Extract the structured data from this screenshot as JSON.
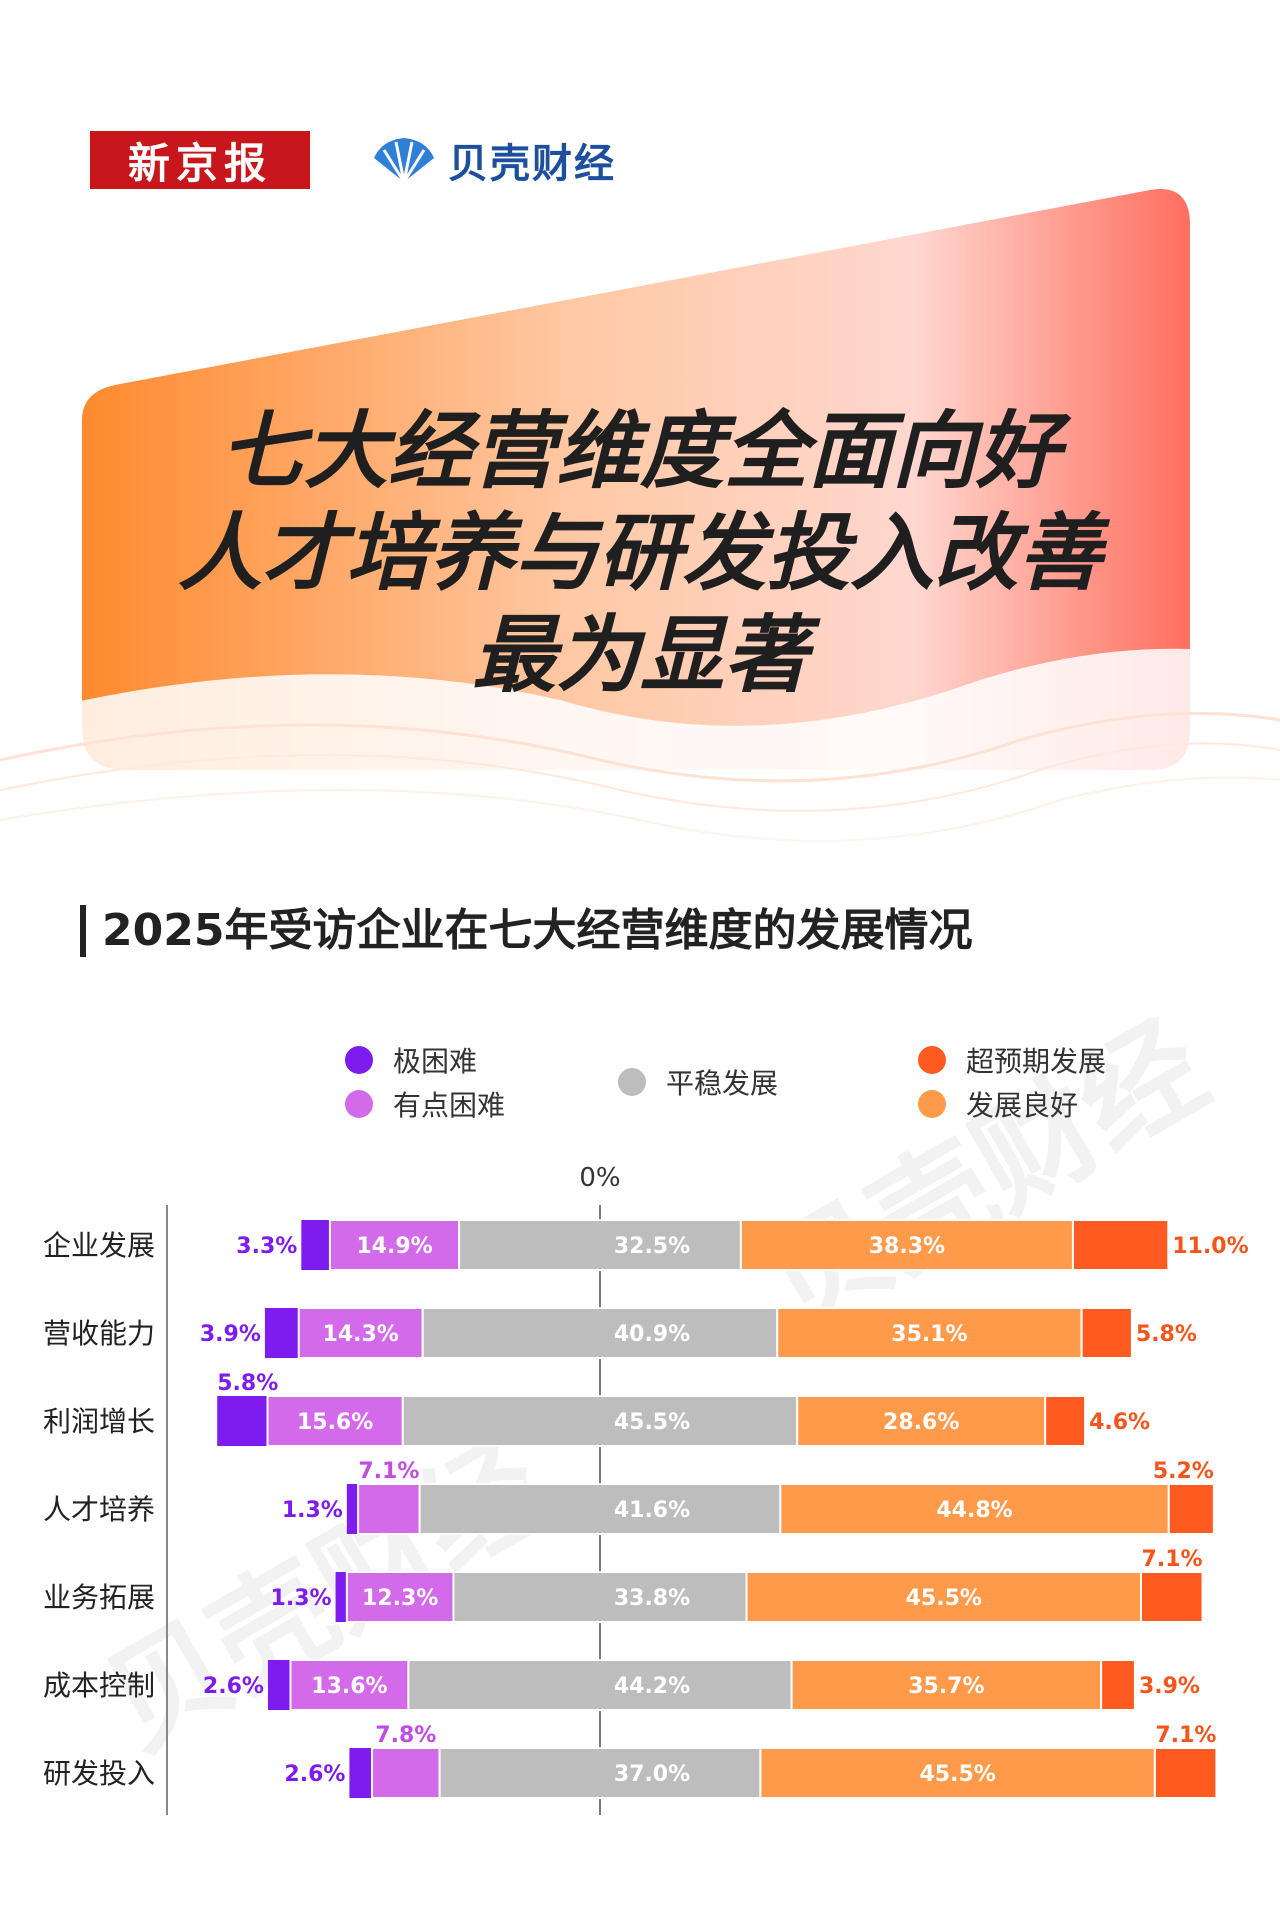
{
  "logos": {
    "xjb": "新京报",
    "bk": "贝壳财经"
  },
  "headline": [
    "七大经营维度全面向好",
    "人才培养与研发投入改善",
    "最为显著"
  ],
  "subtitle": "2025年受访企业在七大经营维度的发展情况",
  "watermark": "贝壳财经",
  "legend": [
    {
      "label": "极困难",
      "color": "#7e1cf0"
    },
    {
      "label": "有点困难",
      "color": "#d36aea"
    },
    {
      "label": "平稳发展",
      "color": "#bdbdbd"
    },
    {
      "label": "超预期发展",
      "color": "#ff5a1f"
    },
    {
      "label": "发展良好",
      "color": "#ff9a4a"
    }
  ],
  "chart_data": {
    "type": "bar",
    "orientation": "horizontal",
    "stacked": "diverging",
    "zero_label": "0%",
    "categories": [
      "企业发展",
      "营收能力",
      "利润增长",
      "人才培养",
      "业务拓展",
      "成本控制",
      "研发投入"
    ],
    "series": [
      {
        "name": "极困难",
        "color": "#7e1cf0",
        "label_color": "#7e1cf0",
        "side": "negative",
        "values": [
          3.3,
          3.9,
          5.8,
          1.3,
          1.3,
          2.6,
          2.6
        ],
        "labels": [
          "3.3%",
          "3.9%",
          "5.8%",
          "1.3%",
          "1.3%",
          "2.6%",
          "2.6%"
        ]
      },
      {
        "name": "有点困难",
        "color": "#d36aea",
        "label_color": "#c24be0",
        "side": "negative",
        "values": [
          14.9,
          14.3,
          15.6,
          7.1,
          12.3,
          13.6,
          7.8
        ],
        "labels": [
          "14.9%",
          "14.3%",
          "15.6%",
          "7.1%",
          "12.3%",
          "13.6%",
          "7.8%"
        ]
      },
      {
        "name": "平稳发展",
        "color": "#bdbdbd",
        "label_color": "#ffffff",
        "side": "center",
        "values": [
          32.5,
          40.9,
          45.5,
          41.6,
          33.8,
          44.2,
          37.0
        ],
        "labels": [
          "32.5%",
          "40.9%",
          "45.5%",
          "41.6%",
          "33.8%",
          "44.2%",
          "37.0%"
        ]
      },
      {
        "name": "发展良好",
        "color": "#ff9a4a",
        "label_color": "#ffffff",
        "side": "positive",
        "values": [
          38.3,
          35.1,
          28.6,
          44.8,
          45.5,
          35.7,
          45.5
        ],
        "labels": [
          "38.3%",
          "35.1%",
          "28.6%",
          "44.8%",
          "45.5%",
          "35.7%",
          "45.5%"
        ]
      },
      {
        "name": "超预期发展",
        "color": "#ff5a1f",
        "label_color": "#f5541a",
        "side": "positive",
        "values": [
          11.0,
          5.8,
          4.6,
          5.2,
          7.1,
          3.9,
          7.1
        ],
        "labels": [
          "11.0%",
          "5.8%",
          "4.6%",
          "5.2%",
          "7.1%",
          "3.9%",
          "7.1%"
        ]
      }
    ]
  }
}
